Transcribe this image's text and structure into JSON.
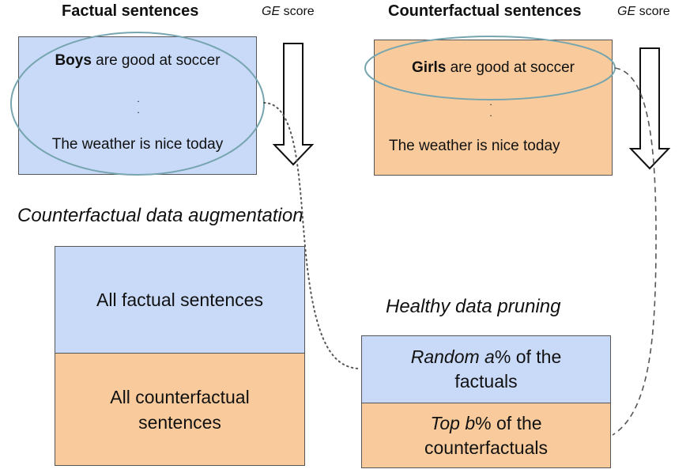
{
  "factual": {
    "heading": "Factual sentences",
    "score_italic": "GE",
    "score_text": " score",
    "sentence1_bold": "Boys",
    "sentence1_rest": " are good at soccer",
    "dots": [
      ".",
      "."
    ],
    "sentence2": "The weather is nice today"
  },
  "counterfactual": {
    "heading": "Counterfactual sentences",
    "score_italic": "GE",
    "score_text": " score",
    "sentence1_bold": "Girls",
    "sentence1_rest": " are good at soccer",
    "dots": [
      ".",
      "."
    ],
    "sentence2": "The weather is nice today"
  },
  "cda": {
    "title": "Counterfactual data augmentation",
    "top": "All factual sentences",
    "bottom_line1": "All counterfactual",
    "bottom_line2": "sentences"
  },
  "pruning": {
    "title": "Healthy data pruning",
    "top_italic": "Random a",
    "top_rest": "% of the",
    "top_line2": "factuals",
    "bottom_italic": "Top b",
    "bottom_rest": "% of the",
    "bottom_line2": "counterfactuals"
  },
  "colors": {
    "factual_fill": "#c9daf8",
    "counterfactual_fill": "#f9cb9c",
    "ellipse_stroke": "#76a5af"
  }
}
